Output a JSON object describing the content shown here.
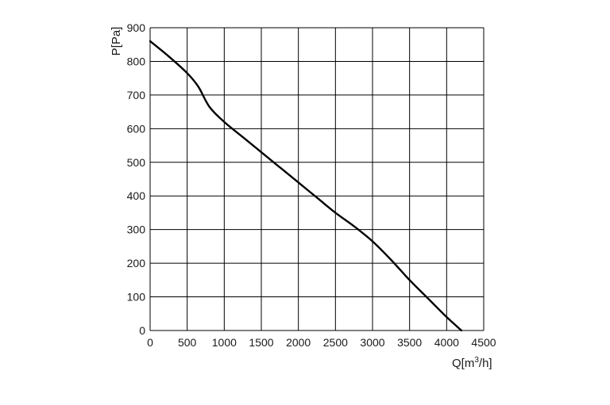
{
  "chart_data": {
    "type": "line",
    "title": "",
    "ylabel": "P[Pa]",
    "xlabel": {
      "prefix": "Q[m",
      "superscript": "3",
      "suffix": "/h]"
    },
    "xlim": [
      0,
      4500
    ],
    "ylim": [
      0,
      900
    ],
    "x_ticks": [
      0,
      500,
      1000,
      1500,
      2000,
      2500,
      3000,
      3500,
      4000,
      4500
    ],
    "y_ticks": [
      0,
      100,
      200,
      300,
      400,
      500,
      600,
      700,
      800,
      900
    ],
    "grid": true,
    "legend": "none",
    "line_color": "#000000",
    "grid_color": "#000000",
    "series": [
      {
        "x": [
          0,
          250,
          500,
          650,
          800,
          1000,
          1250,
          1500,
          1750,
          2000,
          2250,
          2500,
          2750,
          3000,
          3250,
          3500,
          3750,
          4000,
          4200
        ],
        "y": [
          860,
          815,
          765,
          725,
          665,
          620,
          575,
          530,
          485,
          440,
          395,
          350,
          310,
          265,
          210,
          150,
          95,
          40,
          0
        ]
      }
    ]
  }
}
